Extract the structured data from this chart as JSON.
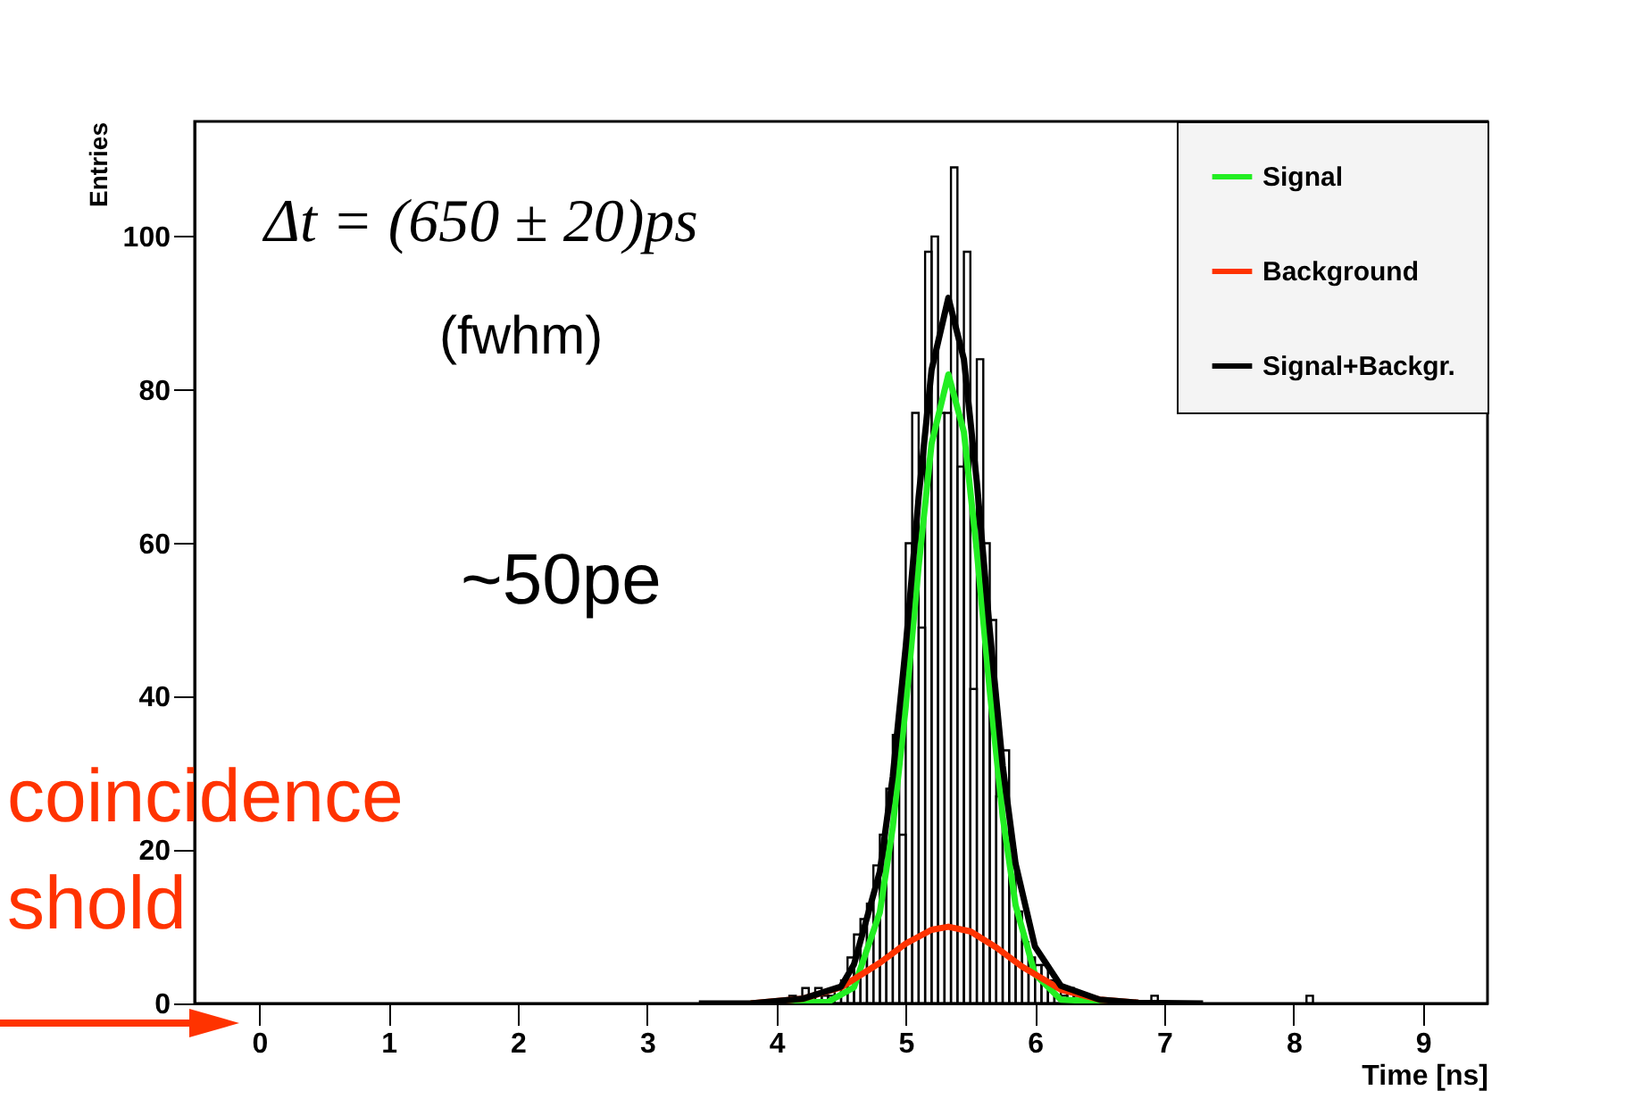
{
  "chart_data": {
    "type": "histogram",
    "xlabel": "Time [ns]",
    "ylabel": "Entries",
    "color": "#000000",
    "bins": [
      4,
      4.05,
      4.1,
      4.15,
      4.2,
      4.25,
      4.3,
      4.35,
      4.4,
      4.45,
      4.5,
      4.55,
      4.6,
      4.65,
      4.7,
      4.75,
      4.8,
      4.85,
      4.9,
      4.95,
      5,
      5.05,
      5.1,
      5.15,
      5.2,
      5.25,
      5.3,
      5.35,
      5.4,
      5.45,
      5.5,
      5.55,
      5.6,
      5.65,
      5.7,
      5.75,
      5.8,
      5.85,
      5.9,
      5.95,
      6,
      6.05,
      6.1,
      6.15,
      6.2,
      6.25,
      6.3,
      6.35,
      6.4,
      6.45,
      6.5,
      6.55,
      6.6,
      6.65,
      6.7,
      6.75,
      6.8,
      6.85,
      6.9,
      6.95,
      7,
      7.05,
      7.1,
      7.15,
      7.2,
      7.25,
      7.3,
      7.35,
      7.4,
      7.45,
      7.5,
      7.55,
      7.6,
      7.65,
      7.7,
      7.75,
      7.8,
      7.85,
      7.9,
      7.95,
      8,
      8.05,
      8.1,
      8.15,
      8.2
    ],
    "values": [
      0,
      0,
      1,
      0,
      2,
      0,
      2,
      1,
      1,
      2,
      3,
      6,
      9,
      11,
      13,
      18,
      22,
      28,
      35,
      22,
      60,
      77,
      49,
      98,
      100,
      77,
      77,
      109,
      70,
      98,
      41,
      84,
      60,
      50,
      27,
      33,
      20,
      12,
      8,
      6,
      5,
      5,
      3,
      2,
      1,
      2,
      1,
      0,
      0,
      0,
      0,
      0,
      0,
      0,
      0,
      0,
      0,
      0,
      1,
      0,
      0,
      0,
      0,
      0,
      0,
      0,
      0,
      0,
      0,
      0,
      0,
      0,
      0,
      0,
      0,
      0,
      0,
      0,
      0,
      0,
      0,
      0,
      1,
      0
    ],
    "series": [
      {
        "name": "Signal",
        "type": "line",
        "color": "#22ee22",
        "x": [
          3.8,
          4.4,
          4.6,
          4.8,
          4.9,
          5.0,
          5.1,
          5.2,
          5.33,
          5.45,
          5.55,
          5.65,
          5.75,
          5.85,
          6.0,
          6.2,
          6.8
        ],
        "values": [
          0,
          0.2,
          2.1,
          11.9,
          23,
          38.7,
          57,
          73,
          82,
          74.5,
          59,
          40.8,
          24.4,
          12.8,
          3.8,
          0.5,
          0
        ]
      },
      {
        "name": "Background",
        "type": "line",
        "color": "#ff3300",
        "x": [
          3.8,
          4.2,
          4.5,
          4.8,
          5.0,
          5.2,
          5.33,
          5.5,
          5.7,
          5.9,
          6.2,
          6.5,
          6.8
        ],
        "values": [
          0,
          0.6,
          2.1,
          5.3,
          7.8,
          9.6,
          10,
          9.4,
          7.3,
          4.8,
          1.8,
          0.5,
          0.1
        ]
      },
      {
        "name": "Signal+Backgr.",
        "type": "line",
        "color": "#000000",
        "x": [
          3.4,
          3.8,
          4.2,
          4.5,
          4.6,
          4.8,
          4.9,
          5.0,
          5.1,
          5.2,
          5.33,
          5.45,
          5.55,
          5.65,
          5.75,
          5.85,
          6.0,
          6.2,
          6.5,
          6.8,
          7.3
        ],
        "values": [
          0,
          0,
          0.6,
          2.2,
          5.1,
          17.2,
          29.6,
          46.5,
          66,
          82.6,
          92,
          84,
          68,
          48.7,
          31,
          18.2,
          7.4,
          2.3,
          0.5,
          0.1,
          0
        ]
      }
    ],
    "xlim": [
      -0.5,
      9.5
    ],
    "xticks": [
      0,
      1,
      2,
      3,
      4,
      5,
      6,
      7,
      8,
      9
    ],
    "ylim": [
      0,
      115
    ],
    "yticks": [
      0,
      20,
      40,
      60,
      80,
      100
    ],
    "grid": false,
    "legend": "top right",
    "marker": "none",
    "line_style": "solid",
    "annotations": [
      "Δt = (650 ± 20)ps",
      "(fwhm)",
      "~50pe",
      "coincidence",
      "shold"
    ]
  }
}
